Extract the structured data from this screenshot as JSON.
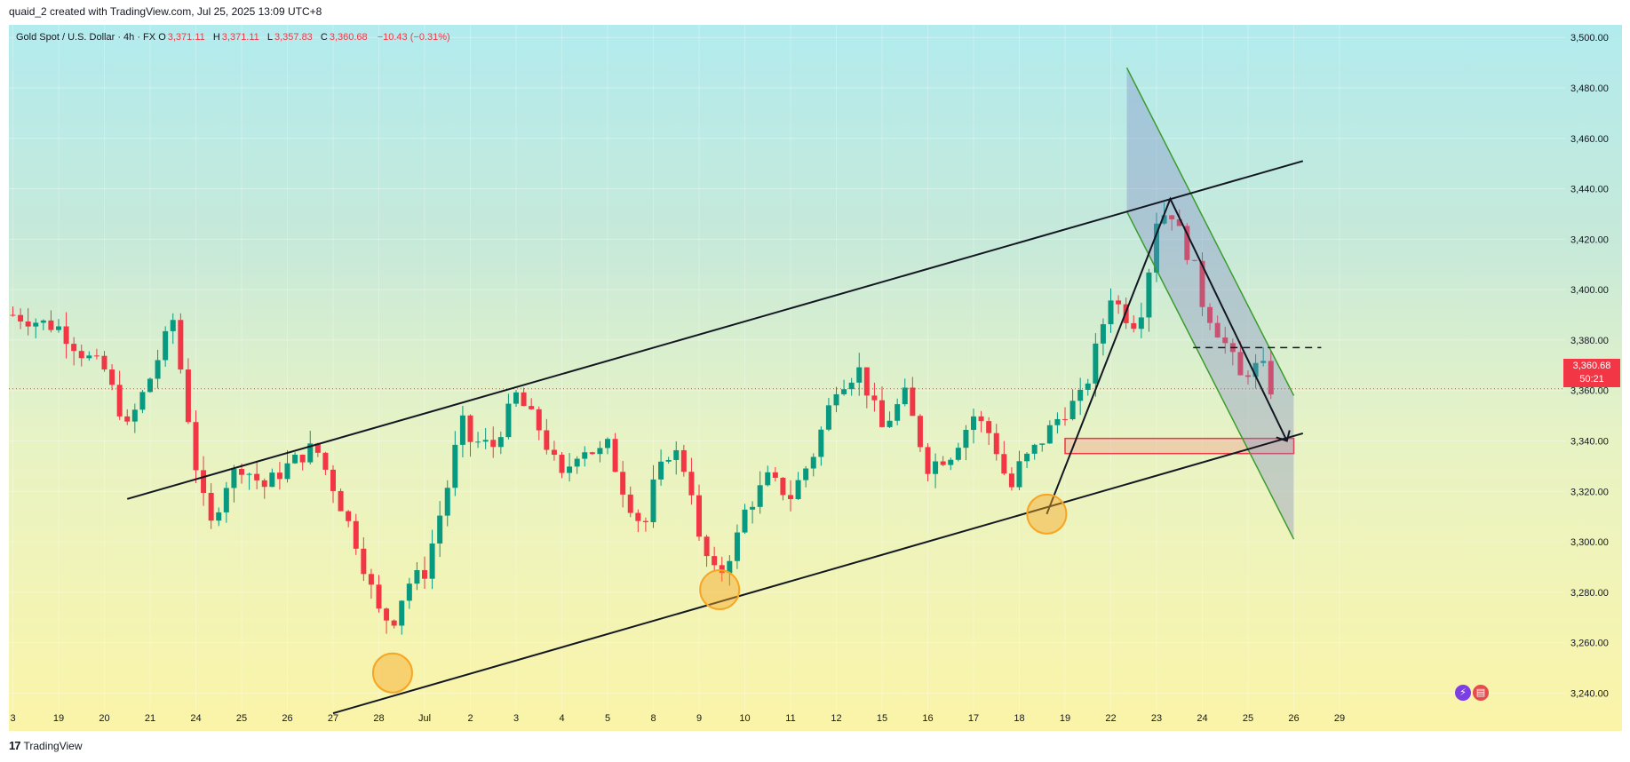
{
  "header": {
    "credit": "quaid_2 created with TradingView.com, Jul 25, 2025 13:09 UTC+8"
  },
  "legend": {
    "symbol": "Gold Spot / U.S. Dollar · 4h · FX",
    "open_label": "O",
    "open": "3,371.11",
    "high_label": "H",
    "high": "3,371.11",
    "low_label": "L",
    "low": "3,357.83",
    "close_label": "C",
    "close": "3,360.68",
    "change": "−10.43 (−0.31%)"
  },
  "price_tag": {
    "price": "3,360.68",
    "countdown": "50:21"
  },
  "footer": {
    "brand": "TradingView",
    "logo": "17"
  },
  "icons": [
    "lightning-icon",
    "us-flag-icon"
  ],
  "colors": {
    "up": "#089981",
    "down": "#f23645",
    "line": "#131722",
    "channel": "#3b9c2e",
    "zone": "#f23645",
    "circle": "#f6a623"
  },
  "chart_data": {
    "type": "candlestick",
    "title": "Gold Spot / U.S. Dollar · 4h · FX",
    "ylim": [
      3225,
      3505
    ],
    "y_ticks": [
      3240,
      3260,
      3280,
      3300,
      3320,
      3340,
      3360,
      3380,
      3400,
      3420,
      3440,
      3460,
      3480,
      3500
    ],
    "y_tick_labels": [
      "3,240.00",
      "3,260.00",
      "3,280.00",
      "3,300.00",
      "3,320.00",
      "3,340.00",
      "3,360.00",
      "3,380.00",
      "3,400.00",
      "3,420.00",
      "3,440.00",
      "3,460.00",
      "3,480.00",
      "3,500.00"
    ],
    "x_ticks": [
      {
        "label": "3",
        "t": -1
      },
      {
        "label": "19",
        "t": 0
      },
      {
        "label": "20",
        "t": 1
      },
      {
        "label": "21",
        "t": 2
      },
      {
        "label": "24",
        "t": 3
      },
      {
        "label": "25",
        "t": 4
      },
      {
        "label": "26",
        "t": 5
      },
      {
        "label": "27",
        "t": 6
      },
      {
        "label": "28",
        "t": 7
      },
      {
        "label": "Jul",
        "t": 8
      },
      {
        "label": "2",
        "t": 9
      },
      {
        "label": "3",
        "t": 10
      },
      {
        "label": "4",
        "t": 11
      },
      {
        "label": "5",
        "t": 12
      },
      {
        "label": "8",
        "t": 13
      },
      {
        "label": "9",
        "t": 14
      },
      {
        "label": "10",
        "t": 15
      },
      {
        "label": "11",
        "t": 16
      },
      {
        "label": "12",
        "t": 17
      },
      {
        "label": "15",
        "t": 18
      },
      {
        "label": "16",
        "t": 19
      },
      {
        "label": "17",
        "t": 20
      },
      {
        "label": "18",
        "t": 21
      },
      {
        "label": "19",
        "t": 22
      },
      {
        "label": "22",
        "t": 23
      },
      {
        "label": "23",
        "t": 24
      },
      {
        "label": "24",
        "t": 25
      },
      {
        "label": "25",
        "t": 26
      },
      {
        "label": "26",
        "t": 27
      },
      {
        "label": "29",
        "t": 28
      }
    ],
    "key_closes": [
      {
        "t": -1,
        "v": 3390
      },
      {
        "t": 0,
        "v": 3385
      },
      {
        "t": 0.5,
        "v": 3375
      },
      {
        "t": 1,
        "v": 3368
      },
      {
        "t": 1.5,
        "v": 3345
      },
      {
        "t": 2,
        "v": 3365
      },
      {
        "t": 2.5,
        "v": 3388
      },
      {
        "t": 3,
        "v": 3330
      },
      {
        "t": 3.3,
        "v": 3305
      },
      {
        "t": 3.7,
        "v": 3325
      },
      {
        "t": 4,
        "v": 3330
      },
      {
        "t": 4.5,
        "v": 3322
      },
      {
        "t": 5,
        "v": 3330
      },
      {
        "t": 5.6,
        "v": 3338
      },
      {
        "t": 6,
        "v": 3322
      },
      {
        "t": 6.5,
        "v": 3300
      },
      {
        "t": 7,
        "v": 3272
      },
      {
        "t": 7.3,
        "v": 3268
      },
      {
        "t": 7.6,
        "v": 3283
      },
      {
        "t": 8,
        "v": 3288
      },
      {
        "t": 8.5,
        "v": 3322
      },
      {
        "t": 8.8,
        "v": 3348
      },
      {
        "t": 9,
        "v": 3340
      },
      {
        "t": 9.5,
        "v": 3338
      },
      {
        "t": 10,
        "v": 3358
      },
      {
        "t": 10.5,
        "v": 3345
      },
      {
        "t": 11,
        "v": 3325
      },
      {
        "t": 11.4,
        "v": 3338
      },
      {
        "t": 11.8,
        "v": 3335
      },
      {
        "t": 12,
        "v": 3338
      },
      {
        "t": 12.4,
        "v": 3318
      },
      {
        "t": 12.8,
        "v": 3305
      },
      {
        "t": 13,
        "v": 3322
      },
      {
        "t": 13.4,
        "v": 3338
      },
      {
        "t": 13.8,
        "v": 3325
      },
      {
        "t": 14,
        "v": 3300
      },
      {
        "t": 14.4,
        "v": 3285
      },
      {
        "t": 14.8,
        "v": 3300
      },
      {
        "t": 15,
        "v": 3312
      },
      {
        "t": 15.5,
        "v": 3325
      },
      {
        "t": 16,
        "v": 3318
      },
      {
        "t": 16.5,
        "v": 3335
      },
      {
        "t": 17,
        "v": 3362
      },
      {
        "t": 17.5,
        "v": 3368
      },
      {
        "t": 18,
        "v": 3345
      },
      {
        "t": 18.5,
        "v": 3358
      },
      {
        "t": 19,
        "v": 3330
      },
      {
        "t": 19.5,
        "v": 3335
      },
      {
        "t": 20,
        "v": 3350
      },
      {
        "t": 20.4,
        "v": 3342
      },
      {
        "t": 20.8,
        "v": 3320
      },
      {
        "t": 21,
        "v": 3330
      },
      {
        "t": 21.4,
        "v": 3338
      },
      {
        "t": 21.8,
        "v": 3348
      },
      {
        "t": 22,
        "v": 3352
      },
      {
        "t": 22.4,
        "v": 3358
      },
      {
        "t": 22.7,
        "v": 3378
      },
      {
        "t": 23,
        "v": 3398
      },
      {
        "t": 23.3,
        "v": 3390
      },
      {
        "t": 23.6,
        "v": 3386
      },
      {
        "t": 23.9,
        "v": 3415
      },
      {
        "t": 24,
        "v": 3428
      },
      {
        "t": 24.3,
        "v": 3432
      },
      {
        "t": 24.6,
        "v": 3418
      },
      {
        "t": 24.9,
        "v": 3405
      },
      {
        "t": 25,
        "v": 3395
      },
      {
        "t": 25.3,
        "v": 3385
      },
      {
        "t": 25.6,
        "v": 3375
      },
      {
        "t": 25.9,
        "v": 3362
      },
      {
        "t": 26,
        "v": 3368
      },
      {
        "t": 26.3,
        "v": 3370
      },
      {
        "t": 26.5,
        "v": 3360.68
      }
    ],
    "support_line": {
      "label": "ascending support",
      "from": {
        "t": 6,
        "v": 3232
      },
      "to": {
        "t": 27.2,
        "v": 3343
      }
    },
    "resistance_line": {
      "label": "ascending resistance",
      "from": {
        "t": 1.5,
        "v": 3317
      },
      "to": {
        "t": 27.2,
        "v": 3451
      }
    },
    "resistance_zone": {
      "from": {
        "t": 22,
        "v": 3335
      },
      "to": {
        "t": 27,
        "v": 3341
      }
    },
    "dashed_level": {
      "v": 3377,
      "from_t": 24.8,
      "to_t": 27.6
    },
    "descending_channel": {
      "top_start": {
        "t": 23.35,
        "v": 3488
      },
      "top_end": {
        "t": 27,
        "v": 3358
      },
      "bot_start": {
        "t": 23.35,
        "v": 3431
      },
      "bot_end": {
        "t": 27,
        "v": 3301
      }
    },
    "projection": [
      {
        "t": 21.6,
        "v": 3311
      },
      {
        "t": 24.3,
        "v": 3436
      },
      {
        "t": 26.85,
        "v": 3340
      }
    ],
    "touch_circles": [
      {
        "t": 7.3,
        "v": 3248
      },
      {
        "t": 14.45,
        "v": 3281
      },
      {
        "t": 21.6,
        "v": 3311
      }
    ],
    "last_price": 3360.68
  }
}
